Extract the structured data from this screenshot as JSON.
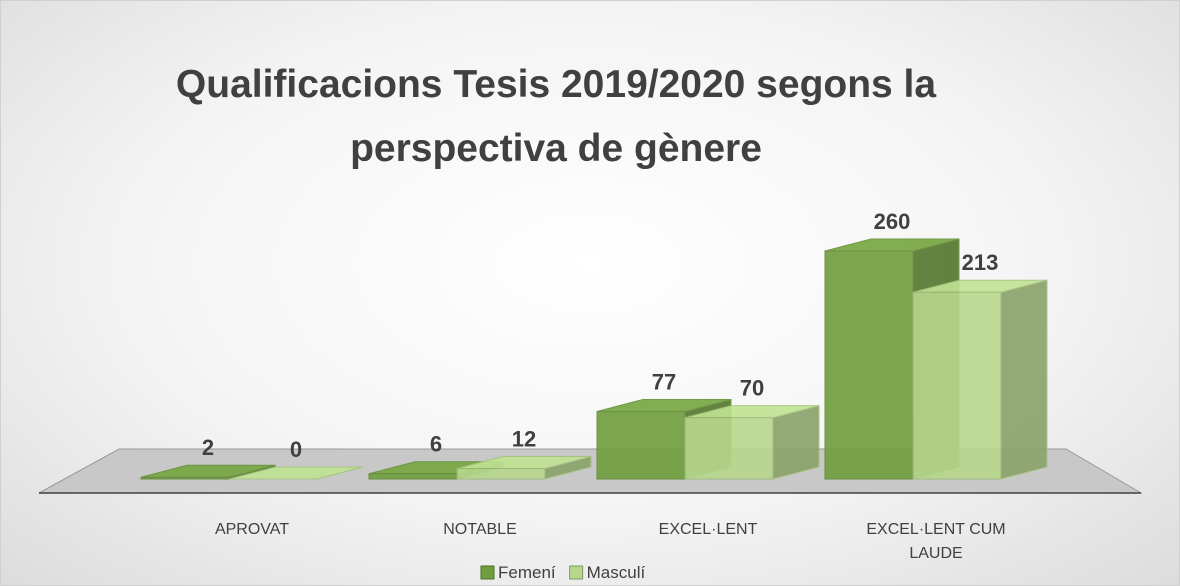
{
  "chart_data": {
    "type": "bar3d",
    "title": "Qualificacions Tesis 2019/2020 segons la perspectiva de gènere",
    "categories": [
      "APROVAT",
      "NOTABLE",
      "EXCEL·LENT",
      "EXCEL·LENT CUM LAUDE"
    ],
    "series": [
      {
        "name": "Femení",
        "color": "#6f9e3c",
        "values": [
          2,
          6,
          77,
          260
        ]
      },
      {
        "name": "Masculí",
        "color": "#b7d88c",
        "values": [
          0,
          12,
          70,
          213
        ]
      }
    ],
    "legend": "bottom"
  }
}
